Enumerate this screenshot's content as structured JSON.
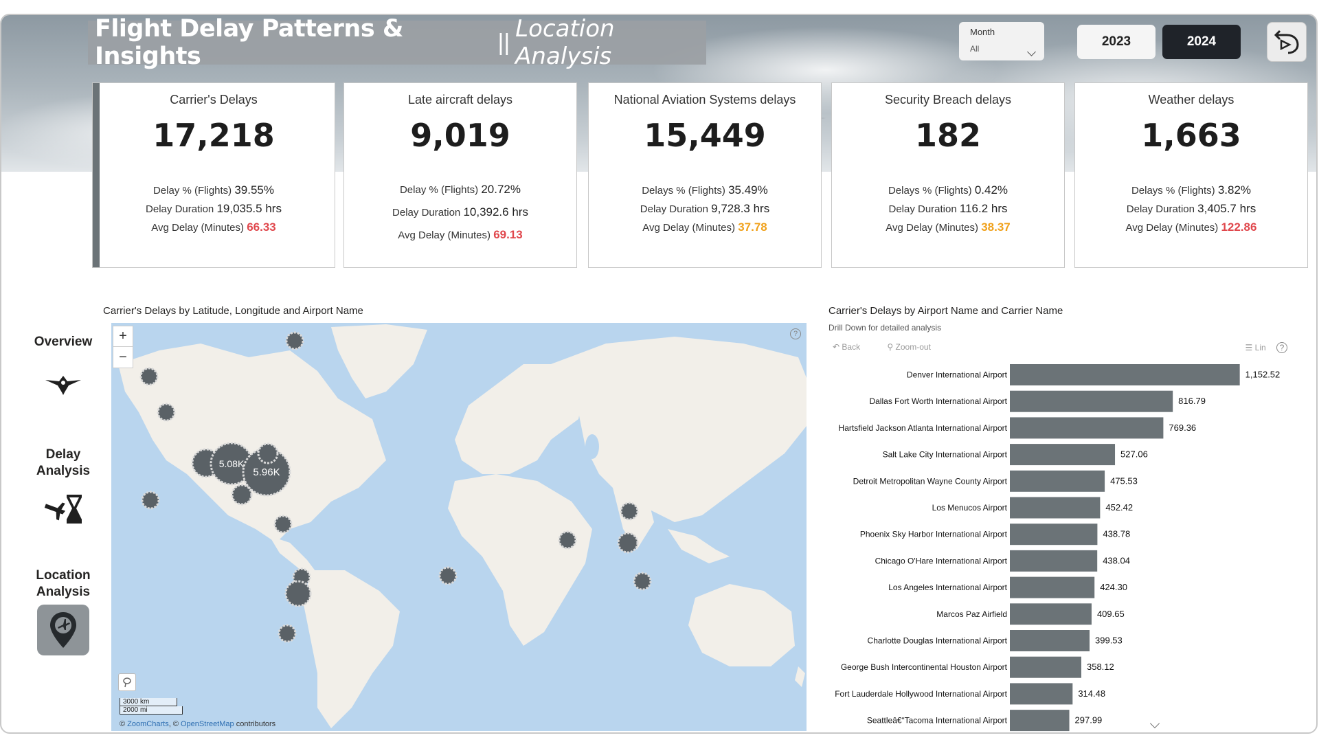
{
  "header": {
    "title_main": "Flight Delay Patterns & Insights",
    "title_sep": "||",
    "title_sub": "Location Analysis",
    "month_label": "Month",
    "month_value": "All",
    "years": [
      "2023",
      "2024"
    ],
    "selected_year": "2024"
  },
  "kpis": [
    {
      "title": "Carrier's Delays",
      "value": "17,218",
      "pct_label": "Delay % (Flights)",
      "pct": "39.55%",
      "dur_label": "Delay Duration",
      "dur": "19,035.5 hrs",
      "avg_label": "Avg Delay (Minutes)",
      "avg": "66.33",
      "avg_color": "red"
    },
    {
      "title": "Late aircraft delays",
      "value": "9,019",
      "pct_label": "Delay % (Flights)",
      "pct": "20.72%",
      "dur_label": "Delay Duration",
      "dur": "10,392.6 hrs",
      "avg_label": "Avg Delay (Minutes)",
      "avg": "69.13",
      "avg_color": "red"
    },
    {
      "title": "National Aviation Systems delays",
      "value": "15,449",
      "pct_label": "Delays % (Flights)",
      "pct": "35.49%",
      "dur_label": "Delay Duration",
      "dur": "9,728.3 hrs",
      "avg_label": "Avg Delay (Minutes)",
      "avg": "37.78",
      "avg_color": "amber"
    },
    {
      "title": "Security Breach delays",
      "value": "182",
      "pct_label": "Delays % (Flights)",
      "pct": "0.42%",
      "dur_label": "Delay Duration",
      "dur": "116.2 hrs",
      "avg_label": "Avg Delay (Minutes)",
      "avg": "38.37",
      "avg_color": "amber"
    },
    {
      "title": "Weather delays",
      "value": "1,663",
      "pct_label": "Delays % (Flights)",
      "pct": "3.82%",
      "dur_label": "Delay Duration",
      "dur": "3,405.7 hrs",
      "avg_label": "Avg Delay (Minutes)",
      "avg": "122.86",
      "avg_color": "red"
    }
  ],
  "nav": {
    "overview": "Overview",
    "delay_line1": "Delay",
    "delay_line2": "Analysis",
    "location_line1": "Location",
    "location_line2": "Analysis",
    "active": "location"
  },
  "map": {
    "title": "Carrier's Delays by Latitude, Longitude and Airport Name",
    "zoom_in": "+",
    "zoom_out": "−",
    "scale_km": "3000 km",
    "scale_mi": "2000 mi",
    "credit_prefix": "©",
    "credit_zoomcharts": "ZoomCharts",
    "credit_mid": ", ©",
    "credit_osm": "OpenStreetMap",
    "credit_suffix": "contributors",
    "help": "?",
    "cluster_labels": [
      "5.08K",
      "5.96K"
    ]
  },
  "bars": {
    "title": "Carrier's Delays by Airport Name and Carrier Name",
    "subtitle": "Drill Down for detailed analysis",
    "back_label": "Back",
    "zoom_out_label": "Zoom-out",
    "lin_label": "Lin",
    "help": "?"
  },
  "colors": {
    "bar": "#6b7377",
    "red": "#e0474c",
    "amber": "#f0a11b",
    "land": "#f2efe9",
    "water": "#b9d5ee",
    "cluster": "#5a6166"
  },
  "chart_data": {
    "type": "bar",
    "orientation": "horizontal",
    "categories": [
      "Denver International Airport",
      "Dallas Fort Worth International Airport",
      "Hartsfield Jackson Atlanta International Airport",
      "Salt Lake City International Airport",
      "Detroit Metropolitan Wayne County Airport",
      "Los Menucos Airport",
      "Phoenix Sky Harbor International Airport",
      "Chicago O'Hare International Airport",
      "Los Angeles International Airport",
      "Marcos Paz Airfield",
      "Charlotte Douglas International Airport",
      "George Bush Intercontinental Houston Airport",
      "Fort Lauderdale Hollywood International Airport",
      "Seattleâ€“Tacoma International Airport"
    ],
    "values": [
      1152.52,
      816.79,
      769.36,
      527.06,
      475.53,
      452.42,
      438.78,
      438.04,
      424.3,
      409.65,
      399.53,
      358.12,
      314.48,
      297.99
    ],
    "value_labels": [
      "1,152.52",
      "816.79",
      "769.36",
      "527.06",
      "475.53",
      "452.42",
      "438.78",
      "438.04",
      "424.30",
      "409.65",
      "399.53",
      "358.12",
      "314.48",
      "297.99"
    ],
    "xlim": [
      0,
      1350
    ]
  }
}
